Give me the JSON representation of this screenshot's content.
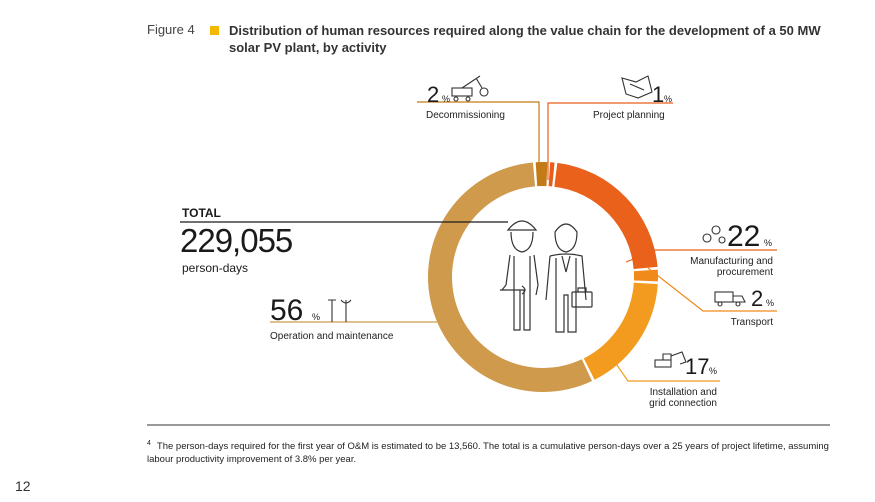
{
  "figure": {
    "label": "Figure 4",
    "title": "Distribution of human resources required along the value chain for the development of a 50 MW solar PV plant, by activity"
  },
  "chart_data": {
    "type": "pie",
    "variant": "donut",
    "categories": [
      "Project planning",
      "Manufacturing and procurement",
      "Transport",
      "Installation and grid connection",
      "Operation and maintenance",
      "Decommissioning"
    ],
    "values": [
      1,
      22,
      2,
      17,
      56,
      2
    ],
    "unit": "%",
    "colors": [
      "#e85d1a",
      "#e9611a",
      "#f08a1a",
      "#f29b1e",
      "#cf9a4c",
      "#c47a16"
    ],
    "total": {
      "title": "TOTAL",
      "value": "229,055",
      "unit": "person-days"
    },
    "labels": {
      "project_planning": {
        "value": "1",
        "label": "Project planning"
      },
      "manufacturing": {
        "value": "22",
        "label_line1": "Manufacturing and",
        "label_line2": "procurement"
      },
      "transport": {
        "value": "2",
        "label": "Transport"
      },
      "installation": {
        "value": "17",
        "label_line1": "Installation and",
        "label_line2": "grid connection"
      },
      "operation": {
        "value": "56",
        "label": "Operation and maintenance"
      },
      "decommissioning": {
        "value": "2",
        "label": "Decommissioning"
      }
    },
    "percent_sign": "%"
  },
  "footnote": {
    "marker": "4",
    "text": "The person-days required for the first year of O&M is estimated to be 13,560. The total is a cumulative person-days over a 25 years of project lifetime, assuming labour productivity improvement of 3.8% per year."
  },
  "page_number": "12"
}
